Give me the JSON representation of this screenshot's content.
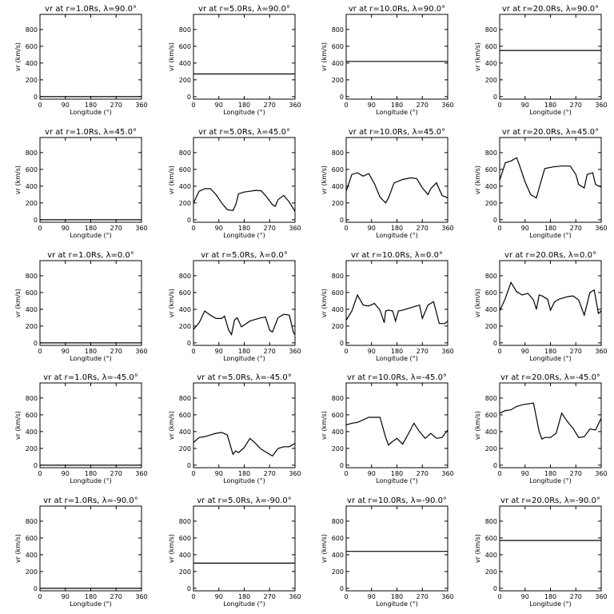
{
  "chart_data": {
    "type": "line",
    "xlabel": "Longitude (°)",
    "ylabel": "vr (km/s)",
    "xlim": [
      0,
      360
    ],
    "ylim": [
      -30,
      980
    ],
    "xticks": [
      0,
      90,
      180,
      270,
      360
    ],
    "yticks": [
      0,
      200,
      400,
      600,
      800
    ],
    "panels": [
      {
        "title": "vr at r=1.0Rs, λ=90.0°",
        "x": [
          0,
          360
        ],
        "y": [
          0,
          0
        ]
      },
      {
        "title": "vr at r=5.0Rs, λ=90.0°",
        "x": [
          0,
          360
        ],
        "y": [
          270,
          270
        ]
      },
      {
        "title": "vr at r=10.0Rs, λ=90.0°",
        "x": [
          0,
          360
        ],
        "y": [
          420,
          420
        ]
      },
      {
        "title": "vr at r=20.0Rs, λ=90.0°",
        "x": [
          0,
          360
        ],
        "y": [
          550,
          550
        ]
      },
      {
        "title": "vr at r=1.0Rs, λ=45.0°",
        "x": [
          0,
          360
        ],
        "y": [
          0,
          0
        ]
      },
      {
        "title": "vr at r=5.0Rs, λ=45.0°",
        "x": [
          0,
          20,
          40,
          60,
          80,
          100,
          120,
          140,
          150,
          160,
          180,
          200,
          220,
          240,
          260,
          280,
          290,
          300,
          320,
          340,
          360
        ],
        "y": [
          200,
          340,
          370,
          370,
          300,
          200,
          120,
          110,
          180,
          310,
          330,
          340,
          350,
          345,
          270,
          180,
          160,
          240,
          290,
          210,
          100
        ]
      },
      {
        "title": "vr at r=10.0Rs, λ=45.0°",
        "x": [
          0,
          20,
          40,
          60,
          80,
          100,
          120,
          140,
          150,
          170,
          200,
          230,
          250,
          270,
          290,
          300,
          320,
          340,
          360
        ],
        "y": [
          340,
          540,
          560,
          520,
          550,
          430,
          270,
          200,
          260,
          440,
          480,
          500,
          490,
          380,
          300,
          370,
          440,
          290,
          260
        ]
      },
      {
        "title": "vr at r=20.0Rs, λ=45.0°",
        "x": [
          0,
          20,
          40,
          60,
          70,
          90,
          110,
          130,
          140,
          160,
          190,
          220,
          250,
          270,
          280,
          300,
          310,
          330,
          340,
          360
        ],
        "y": [
          470,
          680,
          700,
          740,
          650,
          450,
          300,
          260,
          380,
          610,
          630,
          640,
          640,
          540,
          420,
          380,
          540,
          560,
          420,
          390
        ]
      },
      {
        "title": "vr at r=1.0Rs, λ=0.0°",
        "x": [
          0,
          360
        ],
        "y": [
          0,
          0
        ]
      },
      {
        "title": "vr at r=5.0Rs, λ=0.0°",
        "x": [
          0,
          20,
          40,
          60,
          80,
          100,
          110,
          125,
          135,
          145,
          155,
          170,
          200,
          230,
          255,
          270,
          280,
          300,
          320,
          340,
          355,
          360
        ],
        "y": [
          160,
          240,
          380,
          330,
          290,
          290,
          320,
          150,
          100,
          270,
          300,
          190,
          260,
          290,
          310,
          150,
          130,
          300,
          340,
          330,
          120,
          100
        ]
      },
      {
        "title": "vr at r=10.0Rs, λ=0.0°",
        "x": [
          0,
          20,
          40,
          60,
          80,
          100,
          120,
          135,
          140,
          150,
          165,
          175,
          185,
          200,
          230,
          260,
          270,
          290,
          310,
          330,
          350,
          360
        ],
        "y": [
          270,
          380,
          570,
          450,
          440,
          470,
          390,
          240,
          380,
          390,
          380,
          260,
          380,
          390,
          420,
          450,
          290,
          450,
          490,
          230,
          230,
          260
        ]
      },
      {
        "title": "vr at r=20.0Rs, λ=0.0°",
        "x": [
          0,
          20,
          40,
          60,
          80,
          100,
          120,
          130,
          140,
          150,
          170,
          180,
          195,
          210,
          240,
          260,
          280,
          300,
          320,
          335,
          350,
          360
        ],
        "y": [
          380,
          530,
          720,
          610,
          570,
          590,
          510,
          400,
          570,
          560,
          520,
          390,
          490,
          520,
          550,
          560,
          510,
          330,
          600,
          630,
          350,
          380
        ]
      },
      {
        "title": "vr at r=1.0Rs, λ=-45.0°",
        "x": [
          0,
          360
        ],
        "y": [
          0,
          0
        ]
      },
      {
        "title": "vr at r=5.0Rs, λ=-45.0°",
        "x": [
          0,
          20,
          40,
          60,
          80,
          100,
          120,
          140,
          150,
          160,
          180,
          200,
          220,
          240,
          260,
          280,
          300,
          320,
          340,
          360
        ],
        "y": [
          270,
          330,
          340,
          360,
          380,
          390,
          360,
          130,
          170,
          150,
          210,
          320,
          260,
          190,
          150,
          110,
          200,
          220,
          220,
          260
        ]
      },
      {
        "title": "vr at r=10.0Rs, λ=-45.0°",
        "x": [
          0,
          20,
          40,
          60,
          80,
          100,
          120,
          140,
          150,
          160,
          180,
          200,
          220,
          240,
          260,
          280,
          300,
          320,
          340,
          360
        ],
        "y": [
          480,
          500,
          510,
          540,
          570,
          570,
          570,
          330,
          240,
          270,
          320,
          250,
          370,
          500,
          400,
          320,
          380,
          320,
          330,
          420
        ]
      },
      {
        "title": "vr at r=20.0Rs, λ=-45.0°",
        "x": [
          0,
          20,
          40,
          60,
          80,
          100,
          120,
          140,
          150,
          160,
          180,
          200,
          220,
          240,
          260,
          280,
          300,
          320,
          340,
          360
        ],
        "y": [
          620,
          650,
          660,
          700,
          720,
          730,
          740,
          400,
          310,
          330,
          330,
          380,
          620,
          520,
          440,
          330,
          340,
          430,
          420,
          560
        ]
      },
      {
        "title": "vr at r=1.0Rs, λ=-90.0°",
        "x": [
          0,
          360
        ],
        "y": [
          0,
          0
        ]
      },
      {
        "title": "vr at r=5.0Rs, λ=-90.0°",
        "x": [
          0,
          360
        ],
        "y": [
          300,
          300
        ]
      },
      {
        "title": "vr at r=10.0Rs, λ=-90.0°",
        "x": [
          0,
          360
        ],
        "y": [
          440,
          440
        ]
      },
      {
        "title": "vr at r=20.0Rs, λ=-90.0°",
        "x": [
          0,
          360
        ],
        "y": [
          570,
          570
        ]
      }
    ]
  }
}
